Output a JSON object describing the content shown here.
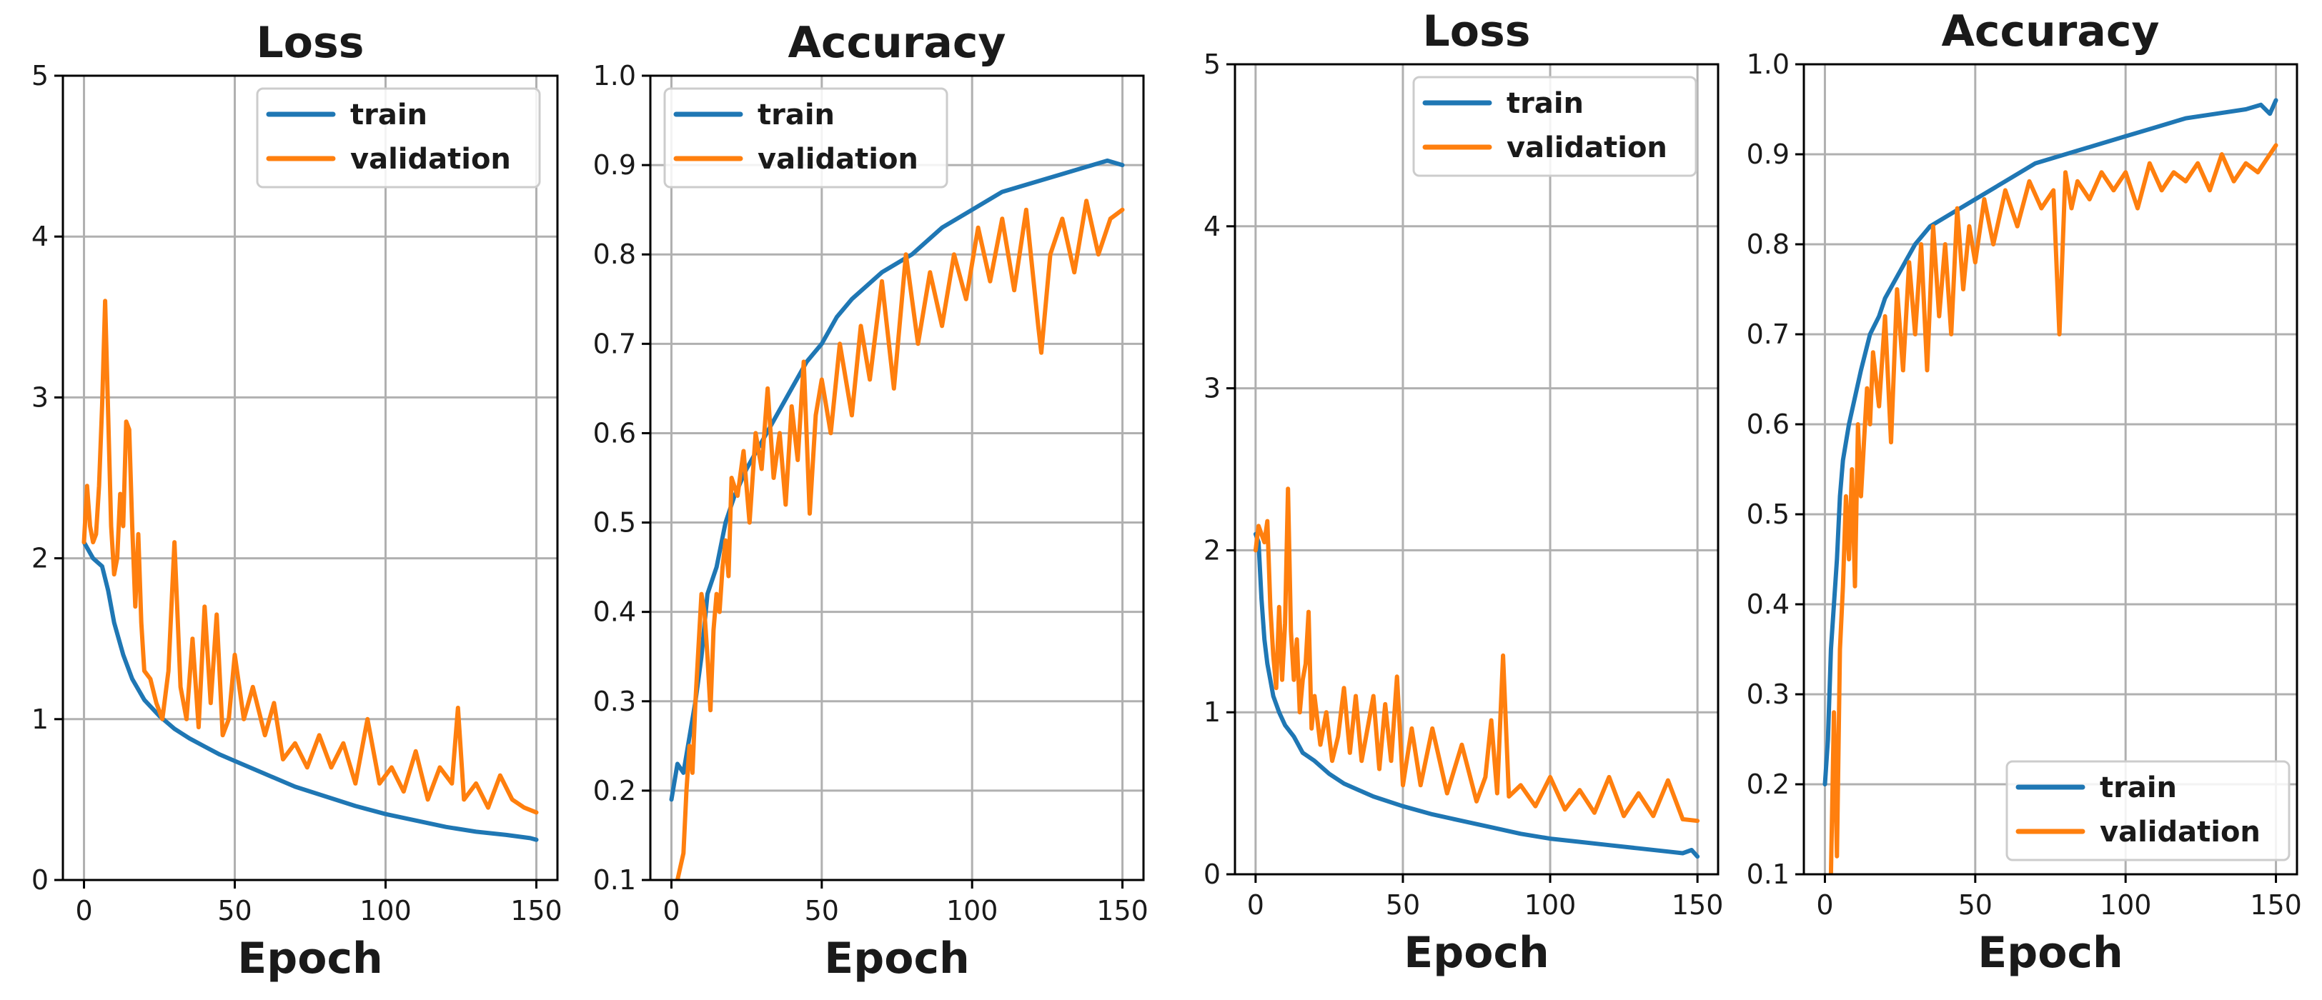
{
  "chart_data": [
    {
      "type": "line",
      "title": "Loss",
      "xlabel": "Epoch",
      "ylabel": "",
      "xlim": [
        -7,
        157
      ],
      "ylim": [
        0,
        5
      ],
      "xticks": [
        0,
        50,
        100,
        150
      ],
      "yticks": [
        0,
        1,
        2,
        3,
        4,
        5
      ],
      "ytick_labels": [
        "0",
        "1",
        "2",
        "3",
        "4",
        "5"
      ],
      "grid": true,
      "legend_position": "top-right",
      "series": [
        {
          "name": "train",
          "color": "#1f77b4",
          "x": [
            0,
            3,
            6,
            8,
            10,
            13,
            16,
            20,
            25,
            30,
            35,
            40,
            45,
            50,
            60,
            70,
            80,
            90,
            100,
            110,
            120,
            130,
            140,
            148,
            150
          ],
          "y": [
            2.1,
            2.0,
            1.95,
            1.8,
            1.6,
            1.4,
            1.25,
            1.12,
            1.02,
            0.94,
            0.88,
            0.83,
            0.78,
            0.74,
            0.66,
            0.58,
            0.52,
            0.46,
            0.41,
            0.37,
            0.33,
            0.3,
            0.28,
            0.26,
            0.25
          ]
        },
        {
          "name": "validation",
          "color": "#ff7f0e",
          "x": [
            0,
            1,
            2,
            3,
            4,
            5,
            6,
            7,
            8,
            9,
            10,
            11,
            12,
            13,
            14,
            15,
            16,
            17,
            18,
            19,
            20,
            22,
            24,
            26,
            28,
            30,
            32,
            34,
            36,
            38,
            40,
            42,
            44,
            46,
            48,
            50,
            53,
            56,
            60,
            63,
            66,
            70,
            74,
            78,
            82,
            86,
            90,
            94,
            98,
            102,
            106,
            110,
            114,
            118,
            122,
            124,
            126,
            130,
            134,
            138,
            142,
            146,
            150
          ],
          "y": [
            2.1,
            2.45,
            2.2,
            2.1,
            2.15,
            2.45,
            2.95,
            3.6,
            2.9,
            2.2,
            1.9,
            2.0,
            2.4,
            2.2,
            2.85,
            2.8,
            2.2,
            1.7,
            2.15,
            1.6,
            1.3,
            1.25,
            1.1,
            1.0,
            1.3,
            2.1,
            1.2,
            1.0,
            1.5,
            0.95,
            1.7,
            1.1,
            1.65,
            0.9,
            1.0,
            1.4,
            1.0,
            1.2,
            0.9,
            1.1,
            0.75,
            0.85,
            0.7,
            0.9,
            0.7,
            0.85,
            0.6,
            1.0,
            0.6,
            0.7,
            0.55,
            0.8,
            0.5,
            0.7,
            0.6,
            1.07,
            0.5,
            0.6,
            0.45,
            0.65,
            0.5,
            0.45,
            0.42
          ]
        }
      ]
    },
    {
      "type": "line",
      "title": "Accuracy",
      "xlabel": "Epoch",
      "ylabel": "",
      "xlim": [
        -7,
        157
      ],
      "ylim": [
        0.1,
        1.0
      ],
      "xticks": [
        0,
        50,
        100,
        150
      ],
      "yticks": [
        0.1,
        0.2,
        0.3,
        0.4,
        0.5,
        0.6,
        0.7,
        0.8,
        0.9,
        1.0
      ],
      "ytick_labels": [
        "0.1",
        "0.2",
        "0.3",
        "0.4",
        "0.5",
        "0.6",
        "0.7",
        "0.8",
        "0.9",
        "1.0"
      ],
      "grid": true,
      "legend_position": "top-left",
      "series": [
        {
          "name": "train",
          "color": "#1f77b4",
          "x": [
            0,
            2,
            4,
            6,
            8,
            10,
            12,
            15,
            18,
            21,
            25,
            30,
            35,
            40,
            45,
            50,
            55,
            60,
            70,
            80,
            90,
            100,
            110,
            120,
            130,
            140,
            145,
            150
          ],
          "y": [
            0.19,
            0.23,
            0.22,
            0.26,
            0.3,
            0.35,
            0.42,
            0.45,
            0.5,
            0.53,
            0.56,
            0.59,
            0.62,
            0.65,
            0.68,
            0.7,
            0.73,
            0.75,
            0.78,
            0.8,
            0.83,
            0.85,
            0.87,
            0.88,
            0.89,
            0.9,
            0.905,
            0.9
          ]
        },
        {
          "name": "validation",
          "color": "#ff7f0e",
          "x": [
            2,
            4,
            5,
            6,
            7,
            8,
            9,
            10,
            11,
            12,
            13,
            14,
            15,
            16,
            17,
            18,
            19,
            20,
            22,
            24,
            26,
            28,
            30,
            32,
            34,
            36,
            38,
            40,
            42,
            44,
            46,
            48,
            50,
            53,
            56,
            60,
            63,
            66,
            70,
            74,
            78,
            82,
            86,
            90,
            94,
            98,
            102,
            106,
            110,
            114,
            118,
            122,
            123,
            126,
            130,
            134,
            138,
            142,
            146,
            150
          ],
          "y": [
            0.1,
            0.13,
            0.2,
            0.25,
            0.22,
            0.3,
            0.36,
            0.42,
            0.4,
            0.35,
            0.29,
            0.38,
            0.42,
            0.4,
            0.45,
            0.48,
            0.44,
            0.55,
            0.53,
            0.58,
            0.5,
            0.6,
            0.56,
            0.65,
            0.55,
            0.6,
            0.52,
            0.63,
            0.57,
            0.68,
            0.51,
            0.62,
            0.66,
            0.6,
            0.7,
            0.62,
            0.72,
            0.66,
            0.77,
            0.65,
            0.8,
            0.7,
            0.78,
            0.72,
            0.8,
            0.75,
            0.83,
            0.77,
            0.84,
            0.76,
            0.85,
            0.72,
            0.69,
            0.8,
            0.84,
            0.78,
            0.86,
            0.8,
            0.84,
            0.85
          ]
        }
      ]
    },
    {
      "type": "line",
      "title": "Loss",
      "xlabel": "Epoch",
      "ylabel": "",
      "xlim": [
        -7,
        157
      ],
      "ylim": [
        0,
        5
      ],
      "xticks": [
        0,
        50,
        100,
        150
      ],
      "yticks": [
        0,
        1,
        2,
        3,
        4,
        5
      ],
      "ytick_labels": [
        "0",
        "1",
        "2",
        "3",
        "4",
        "5"
      ],
      "grid": true,
      "legend_position": "top-right",
      "series": [
        {
          "name": "train",
          "color": "#1f77b4",
          "x": [
            0,
            1,
            2,
            3,
            4,
            5,
            6,
            8,
            10,
            13,
            16,
            20,
            25,
            30,
            35,
            40,
            50,
            60,
            70,
            80,
            90,
            100,
            110,
            120,
            130,
            140,
            145,
            148,
            150
          ],
          "y": [
            2.1,
            2.05,
            1.7,
            1.45,
            1.3,
            1.2,
            1.1,
            1.0,
            0.92,
            0.85,
            0.75,
            0.7,
            0.62,
            0.56,
            0.52,
            0.48,
            0.42,
            0.37,
            0.33,
            0.29,
            0.25,
            0.22,
            0.2,
            0.18,
            0.16,
            0.14,
            0.13,
            0.15,
            0.11
          ]
        },
        {
          "name": "validation",
          "color": "#ff7f0e",
          "x": [
            0,
            1,
            2,
            3,
            4,
            5,
            6,
            7,
            8,
            9,
            10,
            11,
            12,
            13,
            14,
            15,
            16,
            17,
            18,
            19,
            20,
            22,
            24,
            26,
            28,
            30,
            32,
            34,
            36,
            38,
            40,
            42,
            44,
            46,
            48,
            50,
            53,
            56,
            60,
            65,
            70,
            75,
            78,
            80,
            82,
            84,
            86,
            90,
            95,
            100,
            105,
            110,
            115,
            120,
            125,
            130,
            135,
            140,
            145,
            150
          ],
          "y": [
            2.0,
            2.15,
            2.1,
            2.05,
            2.18,
            1.65,
            1.35,
            1.15,
            1.65,
            1.2,
            1.55,
            2.38,
            1.5,
            1.2,
            1.45,
            1.0,
            1.2,
            1.3,
            1.62,
            0.9,
            1.1,
            0.8,
            1.0,
            0.7,
            0.85,
            1.15,
            0.75,
            1.1,
            0.7,
            0.9,
            1.1,
            0.65,
            1.05,
            0.7,
            1.22,
            0.55,
            0.9,
            0.55,
            0.9,
            0.5,
            0.8,
            0.45,
            0.6,
            0.95,
            0.5,
            1.35,
            0.48,
            0.55,
            0.42,
            0.6,
            0.4,
            0.52,
            0.38,
            0.6,
            0.36,
            0.5,
            0.36,
            0.58,
            0.34,
            0.33
          ]
        }
      ]
    },
    {
      "type": "line",
      "title": "Accuracy",
      "xlabel": "Epoch",
      "ylabel": "",
      "xlim": [
        -7,
        157
      ],
      "ylim": [
        0.1,
        1.0
      ],
      "xticks": [
        0,
        50,
        100,
        150
      ],
      "yticks": [
        0.1,
        0.2,
        0.3,
        0.4,
        0.5,
        0.6,
        0.7,
        0.8,
        0.9,
        1.0
      ],
      "ytick_labels": [
        "0.1",
        "0.2",
        "0.3",
        "0.4",
        "0.5",
        "0.6",
        "0.7",
        "0.8",
        "0.9",
        "1.0"
      ],
      "grid": true,
      "legend_position": "bottom-right",
      "series": [
        {
          "name": "train",
          "color": "#1f77b4",
          "x": [
            0,
            1,
            2,
            3,
            4,
            5,
            6,
            8,
            10,
            12,
            15,
            18,
            20,
            25,
            30,
            35,
            40,
            50,
            60,
            70,
            80,
            90,
            100,
            110,
            120,
            130,
            140,
            145,
            148,
            150
          ],
          "y": [
            0.2,
            0.25,
            0.35,
            0.4,
            0.45,
            0.52,
            0.56,
            0.6,
            0.63,
            0.66,
            0.7,
            0.72,
            0.74,
            0.77,
            0.8,
            0.82,
            0.83,
            0.85,
            0.87,
            0.89,
            0.9,
            0.91,
            0.92,
            0.93,
            0.94,
            0.945,
            0.95,
            0.955,
            0.945,
            0.96
          ]
        },
        {
          "name": "validation",
          "color": "#ff7f0e",
          "x": [
            2,
            3,
            4,
            5,
            6,
            7,
            8,
            9,
            10,
            11,
            12,
            13,
            14,
            15,
            16,
            18,
            20,
            22,
            24,
            26,
            28,
            30,
            32,
            34,
            36,
            38,
            40,
            42,
            44,
            46,
            48,
            50,
            53,
            56,
            60,
            64,
            68,
            72,
            76,
            78,
            80,
            82,
            84,
            88,
            92,
            96,
            100,
            104,
            108,
            112,
            116,
            120,
            124,
            128,
            132,
            136,
            140,
            144,
            148,
            150
          ],
          "y": [
            0.1,
            0.28,
            0.12,
            0.35,
            0.42,
            0.52,
            0.45,
            0.55,
            0.42,
            0.6,
            0.52,
            0.58,
            0.64,
            0.6,
            0.68,
            0.62,
            0.72,
            0.58,
            0.75,
            0.66,
            0.78,
            0.7,
            0.8,
            0.66,
            0.82,
            0.72,
            0.8,
            0.7,
            0.84,
            0.75,
            0.82,
            0.78,
            0.85,
            0.8,
            0.86,
            0.82,
            0.87,
            0.84,
            0.86,
            0.7,
            0.88,
            0.84,
            0.87,
            0.85,
            0.88,
            0.86,
            0.88,
            0.84,
            0.89,
            0.86,
            0.88,
            0.87,
            0.89,
            0.86,
            0.9,
            0.87,
            0.89,
            0.88,
            0.9,
            0.91
          ]
        }
      ]
    }
  ]
}
